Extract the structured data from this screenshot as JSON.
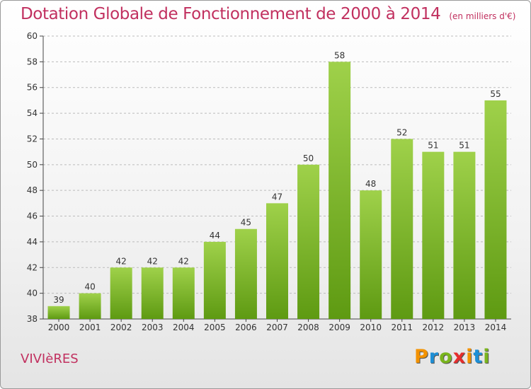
{
  "title": "Dotation Globale de Fonctionnement de 2000 à 2014",
  "subtitle": "(en milliers d'€)",
  "commune": "VIVIèRES",
  "brand": {
    "name": "Proxiti",
    "letters": [
      "P",
      "r",
      "o",
      "x",
      "i",
      "t",
      "i"
    ],
    "colors": [
      "#f39200",
      "#1d8fd6",
      "#7ab51d",
      "#e52d2d",
      "#f39200",
      "#1d8fd6",
      "#7ab51d"
    ]
  },
  "chart_data": {
    "type": "bar",
    "categories": [
      "2000",
      "2001",
      "2002",
      "2003",
      "2004",
      "2005",
      "2006",
      "2007",
      "2008",
      "2009",
      "2010",
      "2011",
      "2012",
      "2013",
      "2014"
    ],
    "values": [
      39,
      40,
      42,
      42,
      42,
      44,
      45,
      47,
      50,
      58,
      48,
      52,
      51,
      51,
      55
    ],
    "data_labels": [
      "39",
      "40",
      "42",
      "42",
      "42",
      "44",
      "45",
      "47",
      "50",
      "58",
      "48",
      "52",
      "51",
      "51",
      "55"
    ],
    "ylim": [
      38,
      60
    ],
    "yticks": [
      "38",
      "40",
      "42",
      "44",
      "46",
      "48",
      "50",
      "52",
      "54",
      "56",
      "58",
      "60"
    ],
    "grid": "horizontal-dashed",
    "bar_color": "#8cc63f"
  }
}
